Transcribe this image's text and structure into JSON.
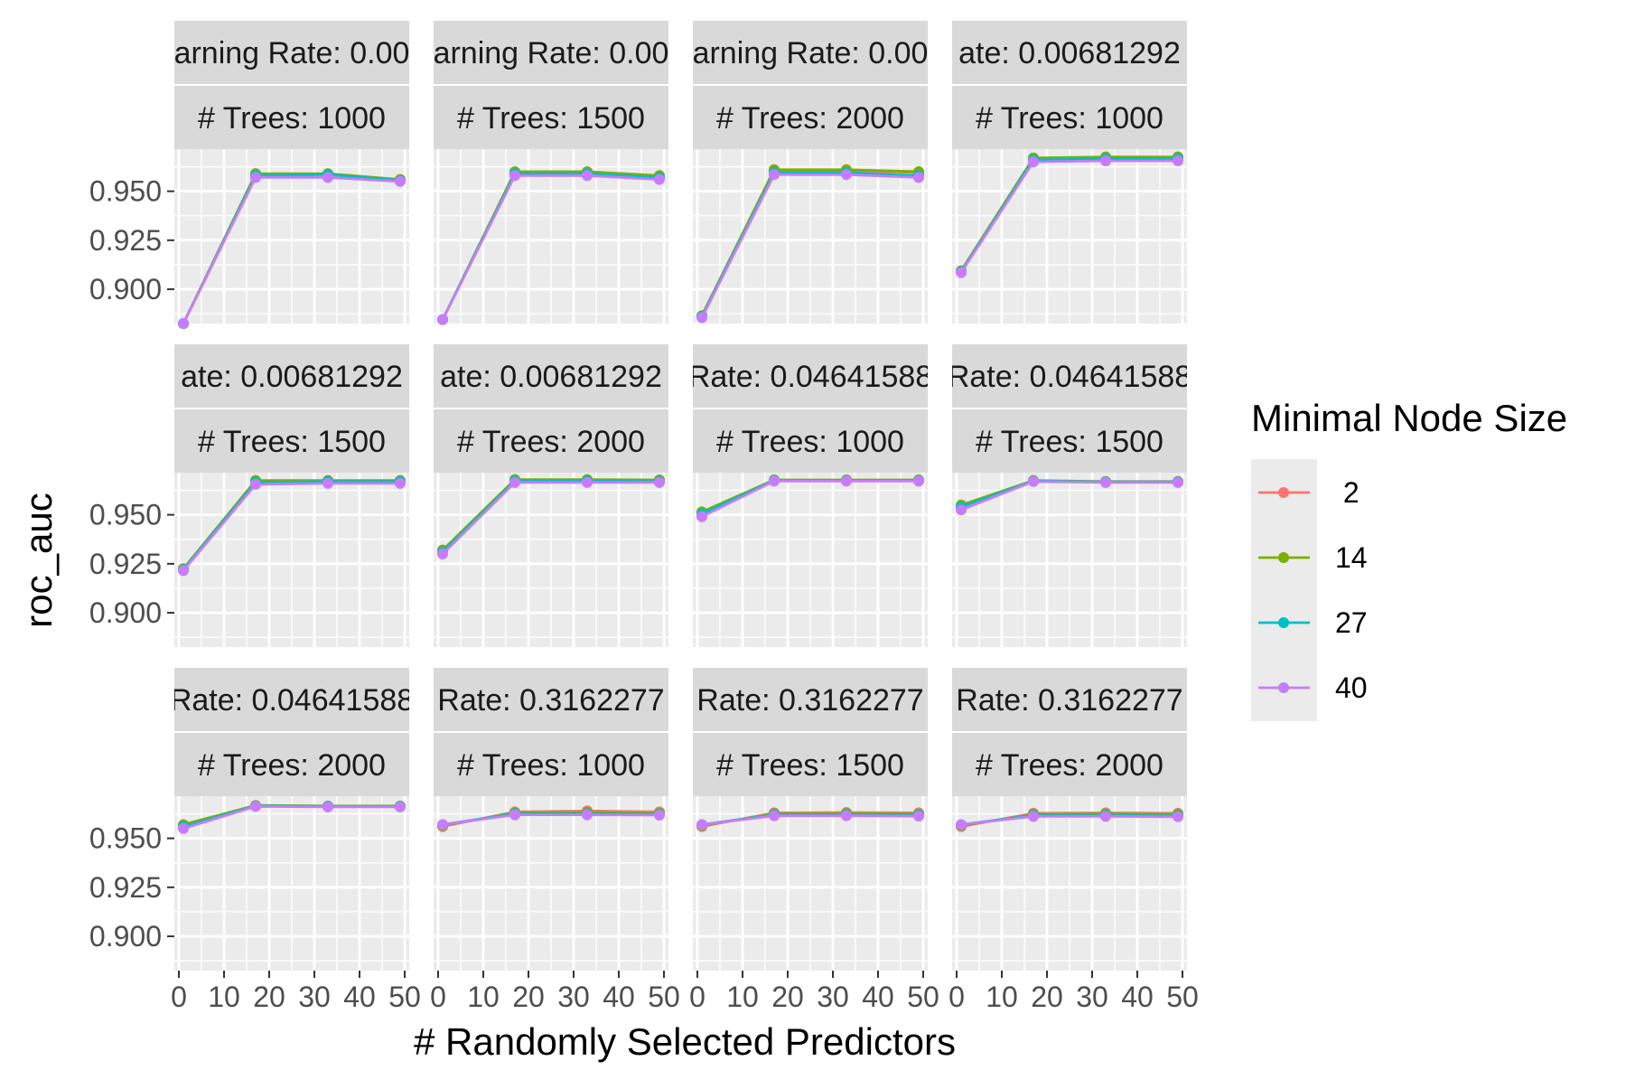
{
  "chart_data": {
    "type": "line",
    "xlabel": "# Randomly Selected Predictors",
    "ylabel": "roc_auc",
    "x": [
      1,
      17,
      33,
      49
    ],
    "xlim": [
      -1,
      51
    ],
    "ylim": [
      0.8825,
      0.9715
    ],
    "xticks": [
      0,
      10,
      20,
      30,
      40,
      50
    ],
    "xtick_labels": [
      "0",
      "10",
      "20",
      "30",
      "40",
      "50"
    ],
    "yticks": [
      0.9,
      0.925,
      0.95
    ],
    "ytick_labels": [
      "0.900",
      "0.925",
      "0.950"
    ],
    "grid": true,
    "legend": {
      "title": "Minimal Node Size",
      "position": "right",
      "items": [
        {
          "label": " 2",
          "color": "#F8766D"
        },
        {
          "label": "14",
          "color": "#7CAE00"
        },
        {
          "label": "27",
          "color": "#00BFC4"
        },
        {
          "label": "40",
          "color": "#C77CFF"
        }
      ]
    },
    "panels": [
      {
        "rate_label": "arning Rate: 0.00",
        "trees_label": "# Trees: 1000",
        "series": [
          {
            "name": " 2",
            "values": [
              0.8825,
              0.9585,
              0.9585,
              0.9555
            ]
          },
          {
            "name": "14",
            "values": [
              0.8825,
              0.959,
              0.959,
              0.956
            ]
          },
          {
            "name": "27",
            "values": [
              0.8825,
              0.958,
              0.9585,
              0.9555
            ]
          },
          {
            "name": "40",
            "values": [
              0.8825,
              0.957,
              0.957,
              0.955
            ]
          }
        ]
      },
      {
        "rate_label": "arning Rate: 0.00",
        "trees_label": "# Trees: 1500",
        "series": [
          {
            "name": " 2",
            "values": [
              0.8845,
              0.9595,
              0.9595,
              0.9575
            ]
          },
          {
            "name": "14",
            "values": [
              0.8845,
              0.96,
              0.96,
              0.958
            ]
          },
          {
            "name": "27",
            "values": [
              0.8845,
              0.959,
              0.959,
              0.957
            ]
          },
          {
            "name": "40",
            "values": [
              0.8845,
              0.958,
              0.958,
              0.956
            ]
          }
        ]
      },
      {
        "rate_label": "arning Rate: 0.00",
        "trees_label": "# Trees: 2000",
        "series": [
          {
            "name": " 2",
            "values": [
              0.8865,
              0.9605,
              0.9605,
              0.9595
            ]
          },
          {
            "name": "14",
            "values": [
              0.8865,
              0.961,
              0.961,
              0.96
            ]
          },
          {
            "name": "27",
            "values": [
              0.886,
              0.9595,
              0.9595,
              0.958
            ]
          },
          {
            "name": "40",
            "values": [
              0.8855,
              0.9585,
              0.9585,
              0.957
            ]
          }
        ]
      },
      {
        "rate_label": "ate: 0.00681292",
        "trees_label": "# Trees: 1000",
        "series": [
          {
            "name": " 2",
            "values": [
              0.909,
              0.9665,
              0.967,
              0.967
            ]
          },
          {
            "name": "14",
            "values": [
              0.9095,
              0.967,
              0.9675,
              0.9675
            ]
          },
          {
            "name": "27",
            "values": [
              0.909,
              0.966,
              0.9665,
              0.9665
            ]
          },
          {
            "name": "40",
            "values": [
              0.9085,
              0.965,
              0.9655,
              0.9655
            ]
          }
        ]
      },
      {
        "rate_label": "ate: 0.00681292",
        "trees_label": "# Trees: 1500",
        "series": [
          {
            "name": " 2",
            "values": [
              0.9225,
              0.967,
              0.967,
              0.967
            ]
          },
          {
            "name": "14",
            "values": [
              0.9225,
              0.9675,
              0.9675,
              0.9675
            ]
          },
          {
            "name": "27",
            "values": [
              0.922,
              0.9665,
              0.967,
              0.967
            ]
          },
          {
            "name": "40",
            "values": [
              0.9215,
              0.9655,
              0.966,
              0.966
            ]
          }
        ]
      },
      {
        "rate_label": "ate: 0.00681292",
        "trees_label": "# Trees: 2000",
        "series": [
          {
            "name": " 2",
            "values": [
              0.9315,
              0.9675,
              0.9675,
              0.9675
            ]
          },
          {
            "name": "14",
            "values": [
              0.932,
              0.968,
              0.968,
              0.9678
            ]
          },
          {
            "name": "27",
            "values": [
              0.931,
              0.9672,
              0.9672,
              0.967
            ]
          },
          {
            "name": "40",
            "values": [
              0.93,
              0.9665,
              0.9665,
              0.9665
            ]
          }
        ]
      },
      {
        "rate_label": "Rate: 0.04641588",
        "trees_label": "# Trees: 1000",
        "series": [
          {
            "name": " 2",
            "values": [
              0.951,
              0.9675,
              0.9675,
              0.9675
            ]
          },
          {
            "name": "14",
            "values": [
              0.9515,
              0.9678,
              0.9678,
              0.9678
            ]
          },
          {
            "name": "27",
            "values": [
              0.9505,
              0.9675,
              0.9675,
              0.9675
            ]
          },
          {
            "name": "40",
            "values": [
              0.949,
              0.9672,
              0.9672,
              0.9672
            ]
          }
        ]
      },
      {
        "rate_label": "Rate: 0.04641588",
        "trees_label": "# Trees: 1500",
        "series": [
          {
            "name": " 2",
            "values": [
              0.9545,
              0.9672,
              0.9668,
              0.9668
            ]
          },
          {
            "name": "14",
            "values": [
              0.955,
              0.9675,
              0.967,
              0.967
            ]
          },
          {
            "name": "27",
            "values": [
              0.954,
              0.9672,
              0.9668,
              0.9668
            ]
          },
          {
            "name": "40",
            "values": [
              0.9525,
              0.967,
              0.9665,
              0.9665
            ]
          }
        ]
      },
      {
        "rate_label": "Rate: 0.04641588",
        "trees_label": "# Trees: 2000",
        "series": [
          {
            "name": " 2",
            "values": [
              0.9565,
              0.9665,
              0.9663,
              0.9663
            ]
          },
          {
            "name": "14",
            "values": [
              0.957,
              0.9668,
              0.9665,
              0.9665
            ]
          },
          {
            "name": "27",
            "values": [
              0.956,
              0.9665,
              0.9663,
              0.9663
            ]
          },
          {
            "name": "40",
            "values": [
              0.955,
              0.9663,
              0.966,
              0.966
            ]
          }
        ]
      },
      {
        "rate_label": "Rate: 0.3162277",
        "trees_label": "# Trees: 1000",
        "series": [
          {
            "name": " 2",
            "values": [
              0.956,
              0.9635,
              0.964,
              0.9635
            ]
          },
          {
            "name": "14",
            "values": [
              0.9565,
              0.963,
              0.9632,
              0.9628
            ]
          },
          {
            "name": "27",
            "values": [
              0.957,
              0.9625,
              0.9625,
              0.9622
            ]
          },
          {
            "name": "40",
            "values": [
              0.957,
              0.962,
              0.962,
              0.9618
            ]
          }
        ]
      },
      {
        "rate_label": "Rate: 0.3162277",
        "trees_label": "# Trees: 1500",
        "series": [
          {
            "name": " 2",
            "values": [
              0.956,
              0.963,
              0.9632,
              0.963
            ]
          },
          {
            "name": "14",
            "values": [
              0.9565,
              0.9625,
              0.9626,
              0.9624
            ]
          },
          {
            "name": "27",
            "values": [
              0.957,
              0.962,
              0.962,
              0.9618
            ]
          },
          {
            "name": "40",
            "values": [
              0.957,
              0.9615,
              0.9615,
              0.9613
            ]
          }
        ]
      },
      {
        "rate_label": "Rate: 0.3162277",
        "trees_label": "# Trees: 2000",
        "series": [
          {
            "name": " 2",
            "values": [
              0.956,
              0.9628,
              0.963,
              0.9628
            ]
          },
          {
            "name": "14",
            "values": [
              0.9565,
              0.9622,
              0.9624,
              0.9622
            ]
          },
          {
            "name": "27",
            "values": [
              0.957,
              0.9617,
              0.9617,
              0.9615
            ]
          },
          {
            "name": "40",
            "values": [
              0.957,
              0.9612,
              0.9612,
              0.961
            ]
          }
        ]
      }
    ]
  }
}
